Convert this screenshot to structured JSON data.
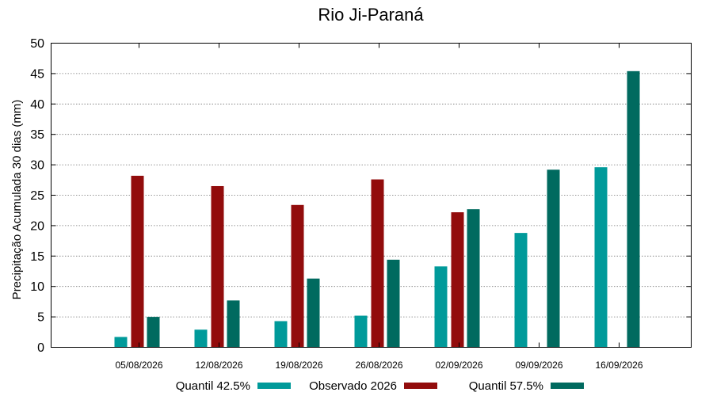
{
  "chart_data": {
    "type": "bar",
    "title": "Rio Ji-Paraná",
    "xlabel": "",
    "ylabel": "Precipitação Acumulada 30 dias (mm)",
    "ylim": [
      0,
      50
    ],
    "yticks": [
      0,
      5,
      10,
      15,
      20,
      25,
      30,
      35,
      40,
      45,
      50
    ],
    "grid": true,
    "legend_position": "bottom",
    "categories": [
      "05/08/2026",
      "12/08/2026",
      "19/08/2026",
      "26/08/2026",
      "02/09/2026",
      "09/09/2026",
      "16/09/2026"
    ],
    "series": [
      {
        "name": "Quantil 42.5%",
        "color": "#009a9a",
        "values": [
          1.7,
          2.9,
          4.3,
          5.2,
          13.3,
          18.8,
          29.6
        ]
      },
      {
        "name": "Observado 2026",
        "color": "#920c0c",
        "values": [
          28.2,
          26.5,
          23.4,
          27.6,
          22.2,
          null,
          null
        ]
      },
      {
        "name": "Quantil 57.5%",
        "color": "#006a5f",
        "values": [
          5.0,
          7.7,
          11.3,
          14.4,
          22.7,
          29.2,
          45.4
        ]
      }
    ]
  }
}
